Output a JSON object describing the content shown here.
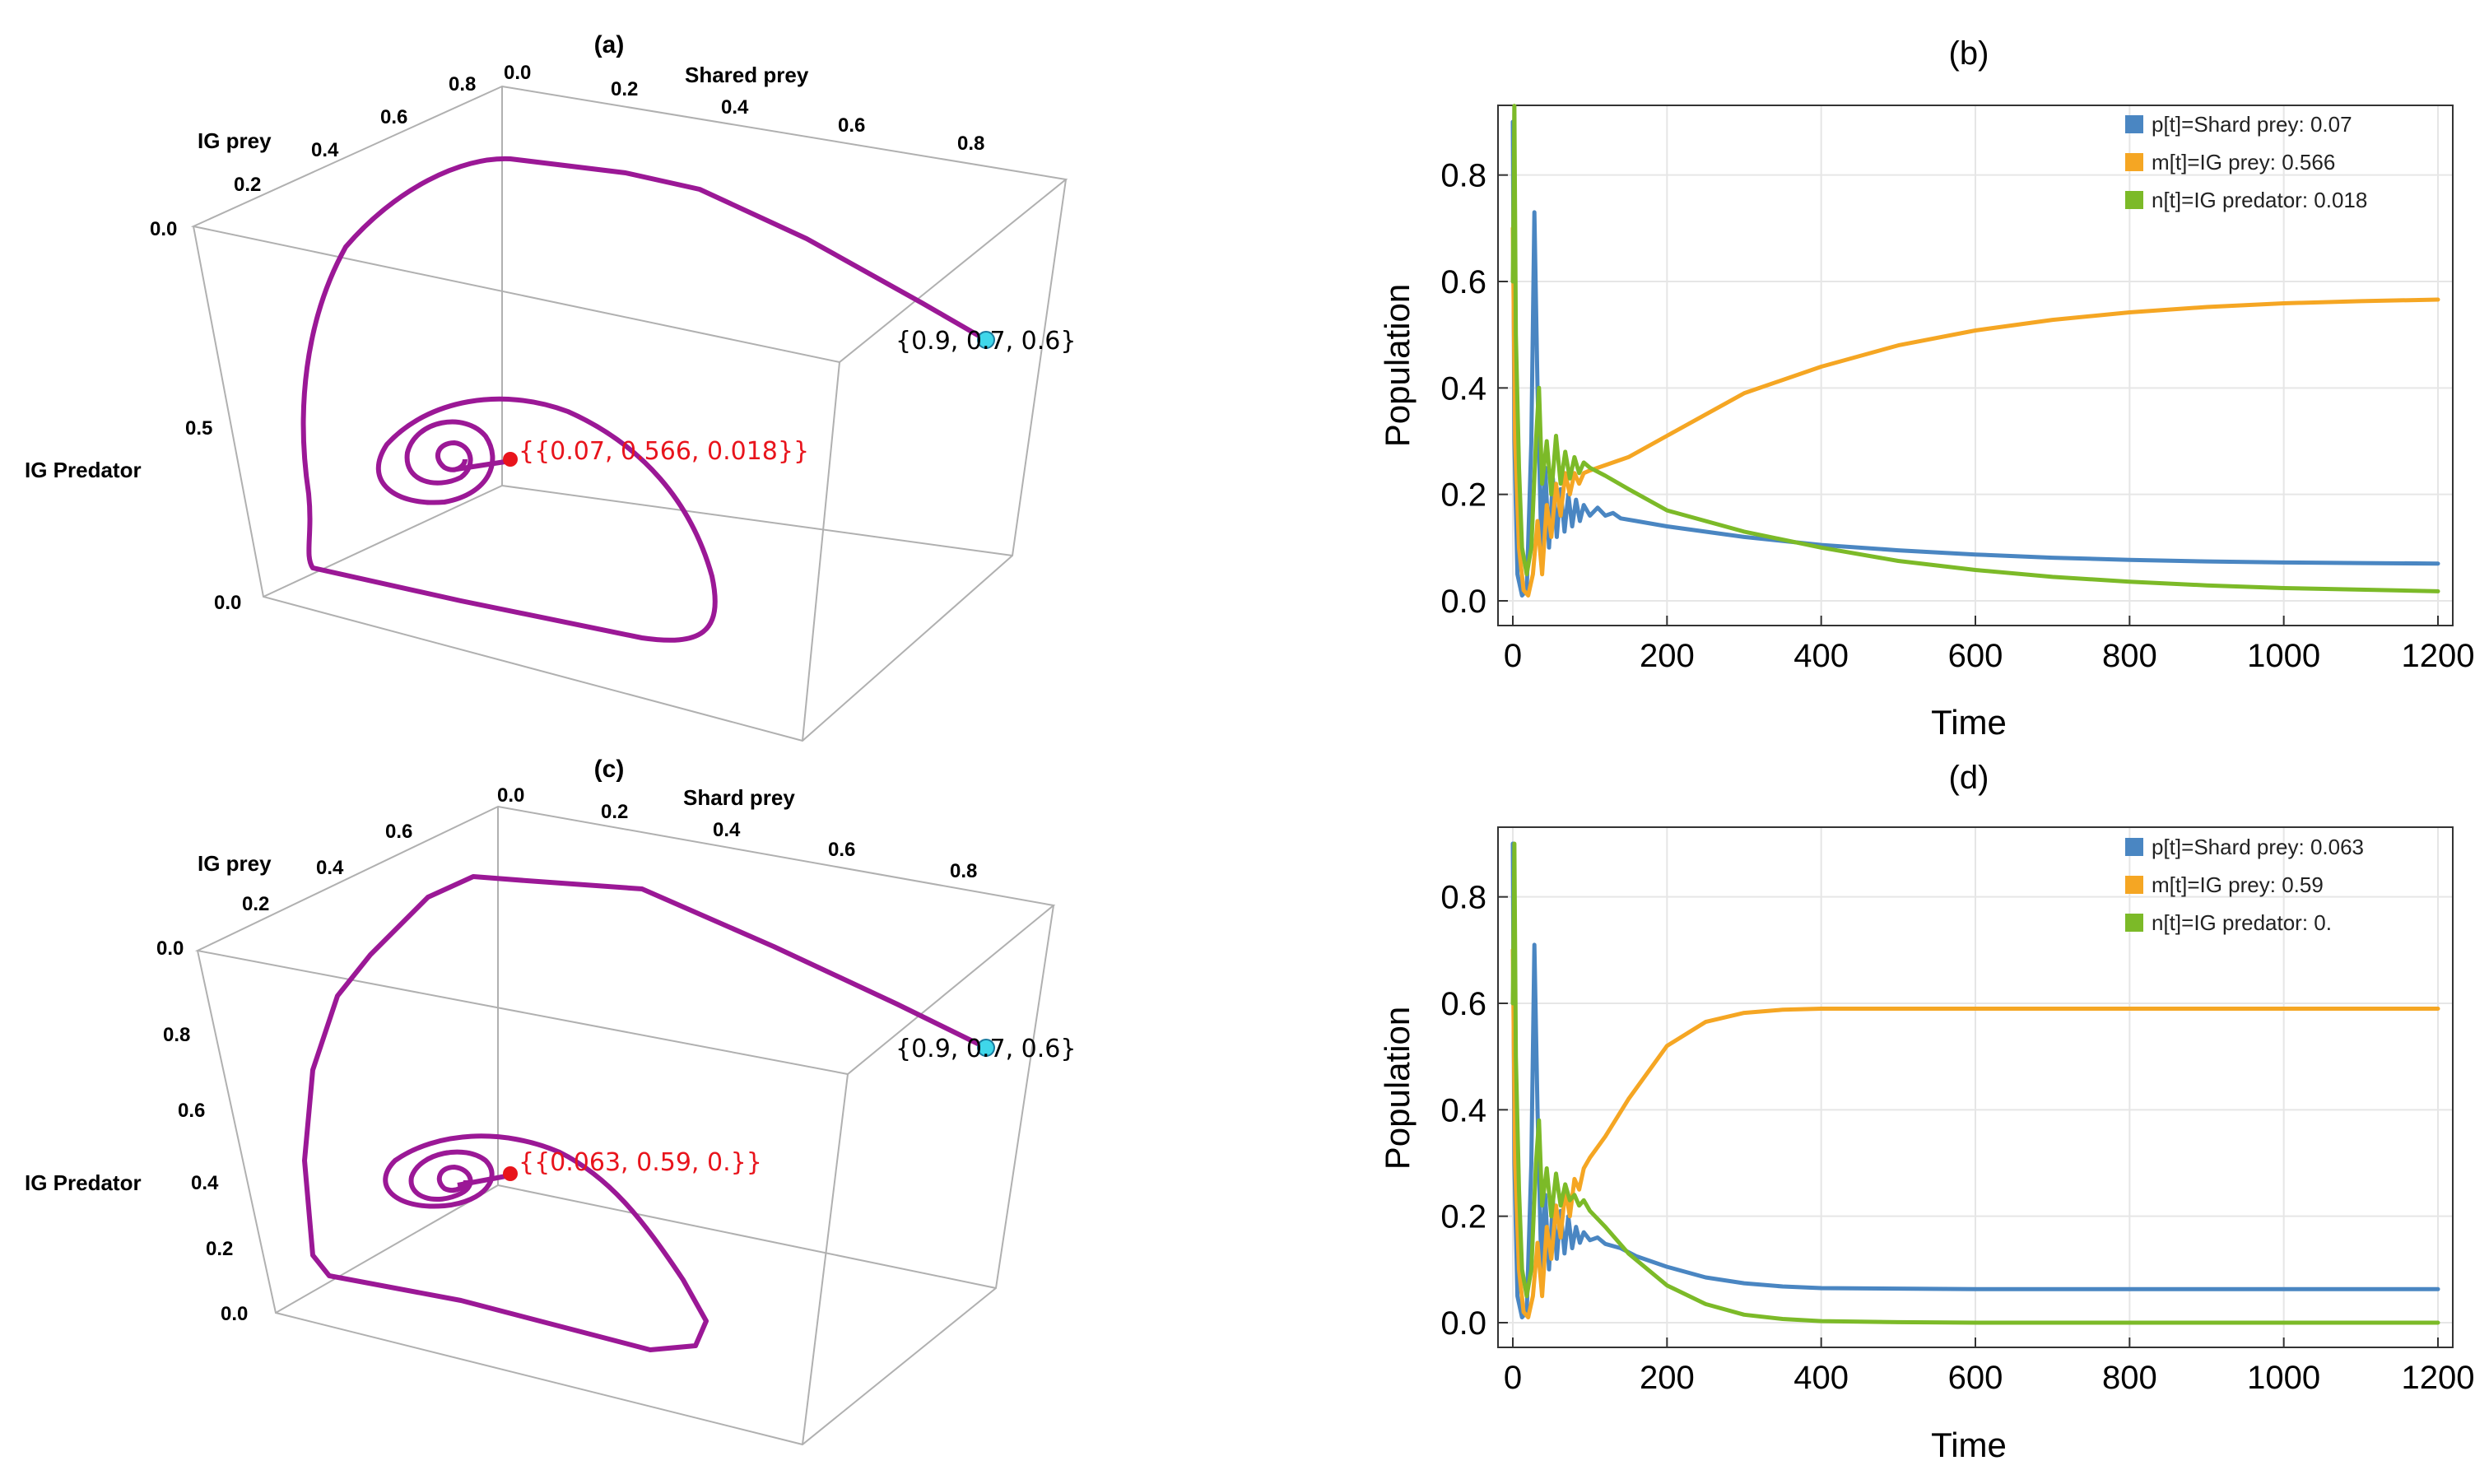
{
  "colors": {
    "trajectory": "#9b1896",
    "start_marker": "#3fd7ea",
    "equilibrium": "#e8141c",
    "box": "#b0b0b0",
    "shared_prey": "#4a86c2",
    "ig_prey": "#f5a623",
    "ig_predator": "#7cba28",
    "grid": "#e6e6e6"
  },
  "panels3d": [
    {
      "title": "(a)",
      "x_label": "Shared prey",
      "y_label": "IG prey",
      "z_label": "IG Predator",
      "x_ticks": [
        "0.0",
        "0.2",
        "0.4",
        "0.6",
        "0.8"
      ],
      "y_ticks": [
        "0.0",
        "0.2",
        "0.4",
        "0.6",
        "0.8"
      ],
      "z_ticks": [
        "0.0",
        "0.5"
      ],
      "start_label": "{0.9, 0.7, 0.6}",
      "equilibrium_label": "{{0.07, 0.566, 0.018}}"
    },
    {
      "title": "(c)",
      "x_label": "Shard prey",
      "y_label": "IG prey",
      "z_label": "IG Predator",
      "x_ticks": [
        "0.0",
        "0.2",
        "0.4",
        "0.6",
        "0.8"
      ],
      "y_ticks": [
        "0.0",
        "0.2",
        "0.4",
        "0.6"
      ],
      "z_ticks": [
        "0.0",
        "0.2",
        "0.4",
        "0.6",
        "0.8"
      ],
      "start_label": "{0.9, 0.7, 0.6}",
      "equilibrium_label": "{{0.063, 0.59, 0.}}"
    }
  ],
  "chart_data": [
    {
      "panel": "(b)",
      "type": "line",
      "title": "(b)",
      "xlabel": "Time",
      "ylabel": "Population",
      "xlim": [
        0,
        1200
      ],
      "ylim": [
        0,
        0.9
      ],
      "x_ticks": [
        "0",
        "200",
        "400",
        "600",
        "800",
        "1000",
        "1200"
      ],
      "y_ticks": [
        "0.0",
        "0.2",
        "0.4",
        "0.6",
        "0.8"
      ],
      "legend_position": "top-right",
      "series": [
        {
          "name": "p[t]=Shard prey: 0.07",
          "color_key": "shared_prey",
          "x": [
            0,
            2,
            6,
            12,
            18,
            24,
            28,
            32,
            37,
            42,
            47,
            52,
            57,
            62,
            67,
            72,
            77,
            82,
            87,
            92,
            100,
            110,
            120,
            130,
            140,
            160,
            200,
            300,
            400,
            500,
            600,
            700,
            800,
            900,
            1000,
            1100,
            1200
          ],
          "values": [
            0.9,
            0.3,
            0.05,
            0.01,
            0.02,
            0.3,
            0.73,
            0.4,
            0.1,
            0.25,
            0.1,
            0.23,
            0.12,
            0.21,
            0.13,
            0.2,
            0.14,
            0.19,
            0.15,
            0.18,
            0.16,
            0.175,
            0.16,
            0.165,
            0.155,
            0.15,
            0.14,
            0.12,
            0.105,
            0.095,
            0.087,
            0.081,
            0.077,
            0.074,
            0.072,
            0.071,
            0.07
          ]
        },
        {
          "name": "m[t]=IG prey: 0.566",
          "color_key": "ig_prey",
          "x": [
            0,
            3,
            8,
            14,
            20,
            26,
            32,
            38,
            44,
            50,
            56,
            62,
            68,
            74,
            80,
            86,
            92,
            100,
            150,
            200,
            300,
            400,
            500,
            600,
            700,
            800,
            900,
            1000,
            1100,
            1200
          ],
          "values": [
            0.7,
            0.3,
            0.1,
            0.02,
            0.01,
            0.05,
            0.15,
            0.05,
            0.18,
            0.12,
            0.22,
            0.16,
            0.24,
            0.2,
            0.24,
            0.22,
            0.24,
            0.245,
            0.27,
            0.31,
            0.39,
            0.44,
            0.48,
            0.508,
            0.528,
            0.542,
            0.552,
            0.559,
            0.563,
            0.566
          ]
        },
        {
          "name": "n[t]=IG predator: 0.018",
          "color_key": "ig_predator",
          "x": [
            0,
            2,
            4,
            8,
            12,
            18,
            24,
            30,
            34,
            38,
            44,
            50,
            56,
            62,
            68,
            74,
            80,
            86,
            92,
            100,
            120,
            150,
            200,
            300,
            400,
            500,
            600,
            700,
            800,
            900,
            1000,
            1100,
            1200
          ],
          "values": [
            0.6,
            0.93,
            0.5,
            0.25,
            0.1,
            0.05,
            0.1,
            0.3,
            0.4,
            0.22,
            0.3,
            0.2,
            0.31,
            0.22,
            0.28,
            0.23,
            0.27,
            0.24,
            0.26,
            0.25,
            0.235,
            0.21,
            0.17,
            0.13,
            0.1,
            0.075,
            0.058,
            0.045,
            0.036,
            0.029,
            0.024,
            0.021,
            0.018
          ]
        }
      ]
    },
    {
      "panel": "(d)",
      "type": "line",
      "title": "(d)",
      "xlabel": "Time",
      "ylabel": "Population",
      "xlim": [
        0,
        1200
      ],
      "ylim": [
        0,
        0.9
      ],
      "x_ticks": [
        "0",
        "200",
        "400",
        "600",
        "800",
        "1000",
        "1200"
      ],
      "y_ticks": [
        "0.0",
        "0.2",
        "0.4",
        "0.6",
        "0.8"
      ],
      "legend_position": "top-right",
      "series": [
        {
          "name": "p[t]=Shard prey: 0.063",
          "color_key": "shared_prey",
          "x": [
            0,
            2,
            6,
            12,
            18,
            24,
            28,
            32,
            37,
            42,
            47,
            52,
            57,
            62,
            67,
            72,
            77,
            82,
            87,
            92,
            100,
            110,
            120,
            140,
            160,
            200,
            250,
            300,
            350,
            400,
            500,
            600,
            700,
            800,
            900,
            1000,
            1100,
            1200
          ],
          "values": [
            0.9,
            0.3,
            0.05,
            0.01,
            0.02,
            0.3,
            0.71,
            0.4,
            0.1,
            0.24,
            0.1,
            0.23,
            0.12,
            0.21,
            0.13,
            0.2,
            0.14,
            0.18,
            0.15,
            0.17,
            0.155,
            0.16,
            0.148,
            0.14,
            0.125,
            0.105,
            0.085,
            0.074,
            0.068,
            0.065,
            0.064,
            0.063,
            0.063,
            0.063,
            0.063,
            0.063,
            0.063,
            0.063
          ]
        },
        {
          "name": "m[t]=IG prey: 0.59",
          "color_key": "ig_prey",
          "x": [
            0,
            3,
            8,
            14,
            20,
            26,
            32,
            38,
            44,
            50,
            56,
            62,
            68,
            74,
            80,
            86,
            92,
            100,
            120,
            150,
            200,
            250,
            300,
            350,
            400,
            500,
            600,
            700,
            800,
            900,
            1000,
            1100,
            1200
          ],
          "values": [
            0.7,
            0.3,
            0.1,
            0.02,
            0.01,
            0.05,
            0.15,
            0.05,
            0.18,
            0.12,
            0.22,
            0.16,
            0.25,
            0.2,
            0.27,
            0.25,
            0.29,
            0.31,
            0.35,
            0.42,
            0.52,
            0.565,
            0.582,
            0.588,
            0.59,
            0.59,
            0.59,
            0.59,
            0.59,
            0.59,
            0.59,
            0.59,
            0.59
          ]
        },
        {
          "name": "n[t]=IG predator: 0.",
          "color_key": "ig_predator",
          "x": [
            0,
            2,
            4,
            8,
            12,
            18,
            24,
            30,
            34,
            38,
            44,
            50,
            56,
            62,
            68,
            74,
            80,
            86,
            92,
            100,
            120,
            150,
            200,
            250,
            300,
            350,
            400,
            500,
            600,
            700,
            800,
            900,
            1000,
            1100,
            1200
          ],
          "values": [
            0.6,
            0.9,
            0.5,
            0.25,
            0.1,
            0.05,
            0.1,
            0.3,
            0.38,
            0.22,
            0.29,
            0.2,
            0.28,
            0.22,
            0.26,
            0.23,
            0.24,
            0.22,
            0.23,
            0.21,
            0.18,
            0.13,
            0.07,
            0.035,
            0.015,
            0.007,
            0.003,
            0.001,
            0,
            0,
            0,
            0,
            0,
            0,
            0
          ]
        }
      ]
    }
  ]
}
